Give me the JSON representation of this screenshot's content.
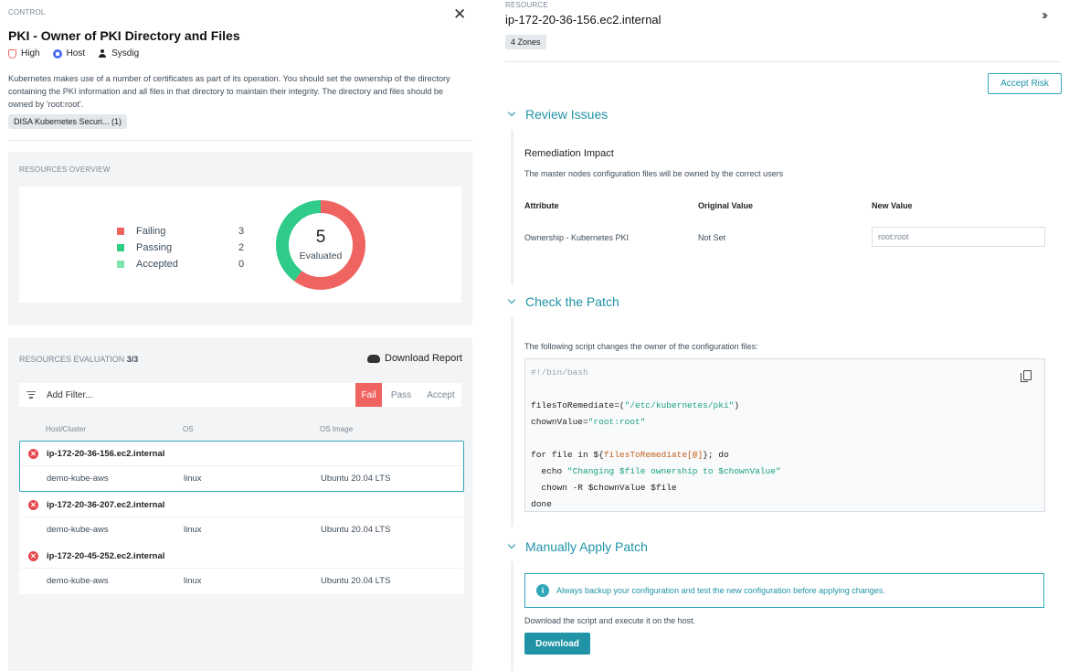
{
  "control": {
    "label": "CONTROL",
    "title": "PKI - Owner of PKI Directory and Files",
    "severity": "High",
    "target": "Host",
    "author": "Sysdig",
    "description": "Kubernetes makes use of a number of certificates as part of its operation. You should set the ownership of the directory containing the PKI information and all files in that directory to maintain their integrity. The directory and files should be owned by 'root:root'.",
    "tag": "DISA Kubernetes Securi... (1)",
    "close_icon": "close-icon"
  },
  "overview": {
    "title": "RESOURCES OVERVIEW",
    "legend": [
      {
        "name": "Failing",
        "count": "3",
        "color": "#ef6461"
      },
      {
        "name": "Passing",
        "count": "2",
        "color": "#2ecc88"
      },
      {
        "name": "Accepted",
        "count": "0",
        "color": "#7fe3b4"
      }
    ],
    "total": "5",
    "total_label": "Evaluated",
    "donut": {
      "failing": 3,
      "passing": 2,
      "accepted": 0
    }
  },
  "evaluation": {
    "title": "RESOURCES EVALUATION",
    "count": "3/3",
    "download_label": "Download Report",
    "filter_placeholder": "Add Filter...",
    "filters": {
      "fail": "Fail",
      "pass": "Pass",
      "accept": "Accept"
    },
    "columns": {
      "host": "Host/Cluster",
      "os": "OS",
      "image": "OS Image"
    },
    "resources": [
      {
        "host": "ip-172-20-36-156.ec2.internal",
        "cluster": "demo-kube-aws",
        "os": "linux",
        "image": "Ubuntu 20.04 LTS",
        "selected": true
      },
      {
        "host": "ip-172-20-36-207.ec2.internal",
        "cluster": "demo-kube-aws",
        "os": "linux",
        "image": "Ubuntu 20.04 LTS",
        "selected": false
      },
      {
        "host": "ip-172-20-45-252.ec2.internal",
        "cluster": "demo-kube-aws",
        "os": "linux",
        "image": "Ubuntu 20.04 LTS",
        "selected": false
      }
    ]
  },
  "resource": {
    "label": "RESOURCE",
    "title": "ip-172-20-36-156.ec2.internal",
    "zones": "4 Zones",
    "accept_risk": "Accept Risk"
  },
  "review": {
    "heading": "Review Issues",
    "impact_title": "Remediation Impact",
    "impact_desc": "The master nodes configuration files will be owned by the correct users",
    "headers": {
      "attribute": "Attribute",
      "original": "Original Value",
      "new": "New Value"
    },
    "row": {
      "attribute": "Ownership - Kubernetes PKI",
      "original": "Not Set",
      "new": "root:root"
    }
  },
  "patch": {
    "heading": "Check the Patch",
    "desc": "The following script changes the owner of the configuration files:",
    "code": {
      "shebang": "#!/bin/bash",
      "l1a": "filesToRemediate=(",
      "l1b": "\"/etc/kubernetes/pki\"",
      "l1c": ")",
      "l2a": "chownValue=",
      "l2b": "\"root:root\"",
      "l3a": "for file in ${",
      "l3b": "filesToRemediate[@]",
      "l3c": "}; do",
      "l4a": "  echo ",
      "l4b": "\"Changing $file ownership to $chownValue\"",
      "l5": "  chown -R $chownValue $file",
      "l6": "done"
    }
  },
  "apply": {
    "heading": "Manually Apply Patch",
    "info": "Always backup your configuration and test the new configuration before applying changes.",
    "desc": "Download the script and execute it on the host.",
    "button": "Download"
  }
}
